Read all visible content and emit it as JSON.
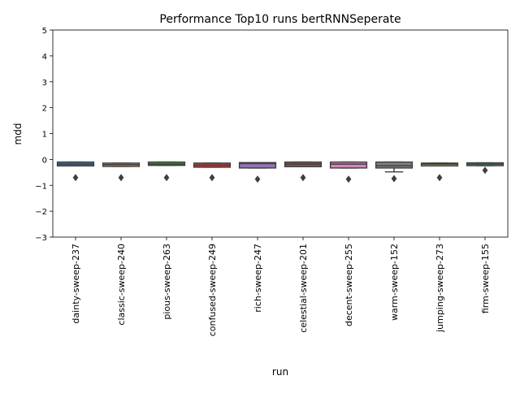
{
  "chart_data": {
    "type": "box",
    "title": "Performance Top10 runs bertRNNSeperate",
    "xlabel": "run",
    "ylabel": "mdd",
    "ylim": [
      -3,
      5
    ],
    "yticks": [
      -3,
      -2,
      -1,
      0,
      1,
      2,
      3,
      4,
      5
    ],
    "grid": false,
    "categories": [
      "dainty-sweep-237",
      "classic-sweep-240",
      "pious-sweep-263",
      "confused-sweep-249",
      "rich-sweep-247",
      "celestial-sweep-201",
      "decent-sweep-255",
      "warm-sweep-152",
      "jumping-sweep-273",
      "firm-sweep-155"
    ],
    "boxes": [
      {
        "q1": -0.25,
        "median": -0.18,
        "q3": -0.1,
        "whislo": -0.25,
        "whishi": -0.1,
        "fliers": [
          -0.7
        ],
        "color": "#3b74ae"
      },
      {
        "q1": -0.27,
        "median": -0.2,
        "q3": -0.14,
        "whislo": -0.27,
        "whishi": -0.14,
        "fliers": [
          -0.7
        ],
        "color": "#e1812c"
      },
      {
        "q1": -0.23,
        "median": -0.18,
        "q3": -0.1,
        "whislo": -0.23,
        "whishi": -0.1,
        "fliers": [
          -0.7
        ],
        "color": "#3a923a"
      },
      {
        "q1": -0.3,
        "median": -0.22,
        "q3": -0.14,
        "whislo": -0.3,
        "whishi": -0.14,
        "fliers": [
          -0.7
        ],
        "color": "#c03d3e"
      },
      {
        "q1": -0.33,
        "median": -0.16,
        "q3": -0.12,
        "whislo": -0.33,
        "whishi": -0.12,
        "fliers": [
          -0.76
        ],
        "color": "#9372b2"
      },
      {
        "q1": -0.28,
        "median": -0.18,
        "q3": -0.1,
        "whislo": -0.28,
        "whishi": -0.1,
        "fliers": [
          -0.7
        ],
        "color": "#845b53"
      },
      {
        "q1": -0.33,
        "median": -0.18,
        "q3": -0.1,
        "whislo": -0.33,
        "whishi": -0.1,
        "fliers": [
          -0.76
        ],
        "color": "#d684bd"
      },
      {
        "q1": -0.33,
        "median": -0.24,
        "q3": -0.1,
        "whislo": -0.48,
        "whishi": -0.1,
        "fliers": [
          -0.74
        ],
        "color": "#7f7f7f"
      },
      {
        "q1": -0.25,
        "median": -0.18,
        "q3": -0.14,
        "whislo": -0.25,
        "whishi": -0.14,
        "fliers": [
          -0.7
        ],
        "color": "#a9aa35"
      },
      {
        "q1": -0.24,
        "median": -0.18,
        "q3": -0.13,
        "whislo": -0.24,
        "whishi": -0.13,
        "fliers": [
          -0.42
        ],
        "color": "#2eaabe"
      }
    ]
  }
}
